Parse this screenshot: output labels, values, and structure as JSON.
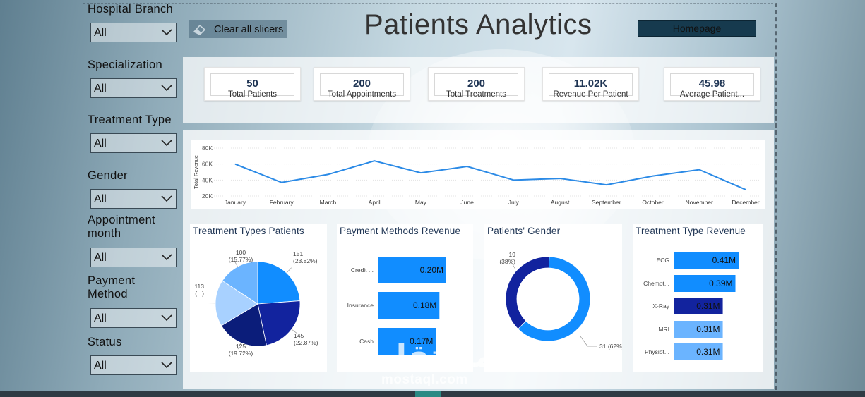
{
  "header": {
    "title": "Patients Analytics",
    "clear_slicers_label": "Clear all slicers",
    "homepage_label": "Homepage"
  },
  "slicers": [
    {
      "label": "Hospital Branch",
      "value": "All"
    },
    {
      "label": "Specialization",
      "value": "All"
    },
    {
      "label": "Treatment Type",
      "value": "All"
    },
    {
      "label": "Gender",
      "value": "All"
    },
    {
      "label": "Appointment month",
      "value": "All"
    },
    {
      "label": "Payment Method",
      "value": "All"
    },
    {
      "label": "Status",
      "value": "All"
    }
  ],
  "kpis": [
    {
      "value": "50",
      "label": "Total Patients"
    },
    {
      "value": "200",
      "label": "Total Appointments"
    },
    {
      "value": "200",
      "label": "Total Treatments"
    },
    {
      "value": "11.02K",
      "label": "Revenue Per Patient"
    },
    {
      "value": "45.98",
      "label": "Average Patient..."
    }
  ],
  "colors": {
    "line": "#2b8ae6",
    "bar_blue": "#118dff",
    "bar_navy": "#12239e",
    "bar_light": "#6bb4ff",
    "pie": [
      "#118dff",
      "#12239e",
      "#0b1d7a",
      "#a8d1ff",
      "#6bb4ff"
    ],
    "donut": [
      "#118dff",
      "#12239e"
    ]
  },
  "chart_data": [
    {
      "type": "line",
      "title": "",
      "ylabel": "Total Revenue",
      "xlabel": "",
      "categories": [
        "January",
        "February",
        "March",
        "April",
        "May",
        "June",
        "July",
        "August",
        "September",
        "October",
        "November",
        "December"
      ],
      "values": [
        60000,
        37000,
        47000,
        64000,
        49000,
        57000,
        40000,
        42000,
        34000,
        45000,
        53000,
        28000
      ],
      "ylim": [
        20000,
        80000
      ],
      "yticks": [
        "20K",
        "40K",
        "60K",
        "80K"
      ],
      "grid": true
    },
    {
      "type": "pie",
      "title": "Treatment Types Patients",
      "slices": [
        {
          "value": 151,
          "label": "151",
          "pct": "(23.82%)"
        },
        {
          "value": 145,
          "label": "145",
          "pct": "(22.87%)"
        },
        {
          "value": 125,
          "label": "125",
          "pct": "(19.72%)"
        },
        {
          "value": 113,
          "label": "113",
          "pct": "(...)"
        },
        {
          "value": 100,
          "label": "100",
          "pct": "(15.77%)"
        }
      ]
    },
    {
      "type": "bar",
      "title": "Payment Methods Revenue",
      "categories": [
        "Credit ...",
        "Insurance",
        "Cash"
      ],
      "values": [
        0.2,
        0.18,
        0.17
      ],
      "value_labels": [
        "0.20M",
        "0.18M",
        "0.17M"
      ]
    },
    {
      "type": "pie",
      "title": "Patients' Gender",
      "slices": [
        {
          "value": 31,
          "label": "31 (62%)"
        },
        {
          "value": 19,
          "label": "19",
          "pct": "(38%)"
        }
      ]
    },
    {
      "type": "bar",
      "title": "Treatment Type Revenue",
      "categories": [
        "ECG",
        "Chemot...",
        "X-Ray",
        "MRI",
        "Physiot..."
      ],
      "values": [
        0.41,
        0.39,
        0.31,
        0.31,
        0.31
      ],
      "value_labels": [
        "0.41M",
        "0.39M",
        "0.31M",
        "0.31M",
        "0.31M"
      ]
    }
  ],
  "watermark": {
    "arabic": "مستقل",
    "latin": "mostaql.com"
  }
}
